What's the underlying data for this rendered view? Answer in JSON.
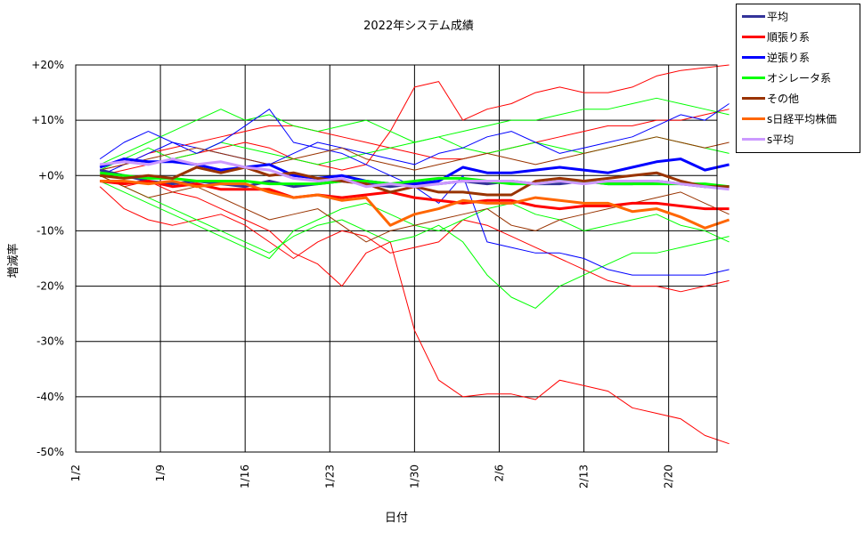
{
  "chart_data": {
    "type": "line",
    "title": "2022年システム成績",
    "xlabel": "日付",
    "ylabel": "増減率",
    "xlim": [
      0,
      53
    ],
    "x_ticks": [
      {
        "label": "1/2",
        "x": 0
      },
      {
        "label": "1/9",
        "x": 7
      },
      {
        "label": "1/16",
        "x": 14
      },
      {
        "label": "1/23",
        "x": 21
      },
      {
        "label": "1/30",
        "x": 28
      },
      {
        "label": "2/6",
        "x": 35
      },
      {
        "label": "2/13",
        "x": 42
      },
      {
        "label": "2/20",
        "x": 49
      }
    ],
    "ylim": [
      -50,
      20
    ],
    "y_ticks": [
      {
        "label": "+20%",
        "y": 20
      },
      {
        "label": "+10%",
        "y": 10
      },
      {
        "label": "+0%",
        "y": 0
      },
      {
        "label": "-10%",
        "y": -10
      },
      {
        "label": "-20%",
        "y": -20
      },
      {
        "label": "-30%",
        "y": -30
      },
      {
        "label": "-40%",
        "y": -40
      },
      {
        "label": "-50%",
        "y": -50
      }
    ],
    "grid": true,
    "legend_position": "outside-top-right",
    "series": [
      {
        "name": "平均",
        "color": "#333399",
        "width": 3,
        "x": [
          2,
          4,
          6,
          8,
          10,
          12,
          14,
          16,
          18,
          20,
          22,
          24,
          26,
          28,
          30,
          32,
          34,
          36,
          38,
          40,
          42,
          44,
          46,
          48,
          50,
          52,
          54
        ],
        "y": [
          1,
          0,
          -1,
          -1.5,
          -1,
          -1.5,
          -2,
          -1,
          -2,
          -1.5,
          -1,
          -1.5,
          -2,
          -1.5,
          -1.5,
          -1,
          -1.5,
          -1,
          -1.5,
          -1.5,
          -1,
          -1.5,
          -1.5,
          -1,
          -1.5,
          -2,
          -2
        ]
      },
      {
        "name": "順張り系",
        "color": "#ff0000",
        "width": 3,
        "x": [
          2,
          4,
          6,
          8,
          10,
          12,
          14,
          16,
          18,
          20,
          22,
          24,
          26,
          28,
          30,
          32,
          34,
          36,
          38,
          40,
          42,
          44,
          46,
          48,
          50,
          52,
          54
        ],
        "y": [
          -1,
          -1.5,
          -1,
          -2,
          -1.5,
          -2.5,
          -2.5,
          -2.5,
          -4,
          -3.5,
          -4,
          -3.5,
          -3,
          -4,
          -4.5,
          -5,
          -4.5,
          -4.5,
          -5.5,
          -6,
          -5.5,
          -5.5,
          -5,
          -5,
          -5.5,
          -6,
          -6
        ]
      },
      {
        "name": "逆張り系",
        "color": "#0000ff",
        "width": 3,
        "x": [
          2,
          4,
          6,
          8,
          10,
          12,
          14,
          16,
          18,
          20,
          22,
          24,
          26,
          28,
          30,
          32,
          34,
          36,
          38,
          40,
          42,
          44,
          46,
          48,
          50,
          52,
          54
        ],
        "y": [
          1.5,
          3,
          2.5,
          2.5,
          2,
          1,
          1.5,
          2,
          0,
          -0.5,
          0,
          -1,
          -1.5,
          -1.5,
          -1,
          1.5,
          0.5,
          0.5,
          1,
          1.5,
          1,
          0.5,
          1.5,
          2.5,
          3,
          1,
          2
        ]
      },
      {
        "name": "オシレータ系",
        "color": "#00ff00",
        "width": 3,
        "x": [
          2,
          4,
          6,
          8,
          10,
          12,
          14,
          16,
          18,
          20,
          22,
          24,
          26,
          28,
          30,
          32,
          34,
          36,
          38,
          40,
          42,
          44,
          46,
          48,
          50,
          52,
          54
        ],
        "y": [
          0.5,
          0,
          -0.5,
          -0.5,
          -1,
          -1,
          -1,
          -1.5,
          -1.5,
          -1.5,
          -1,
          -1,
          -1.5,
          -1,
          -0.5,
          -0.5,
          -1,
          -1.5,
          -1.5,
          -1,
          -1,
          -1.5,
          -1.5,
          -1.5,
          -1.5,
          -1.5,
          -2
        ]
      },
      {
        "name": "その他",
        "color": "#993300",
        "width": 3,
        "x": [
          2,
          4,
          6,
          8,
          10,
          12,
          14,
          16,
          18,
          20,
          22,
          24,
          26,
          28,
          30,
          32,
          34,
          36,
          38,
          40,
          42,
          44,
          46,
          48,
          50,
          52,
          54
        ],
        "y": [
          0,
          -0.5,
          0,
          -0.5,
          1.5,
          0.5,
          1.5,
          0,
          0.5,
          -0.5,
          -1,
          -1.5,
          -3,
          -2,
          -3,
          -3,
          -3.5,
          -3.5,
          -1,
          -0.5,
          -1,
          -0.5,
          0,
          0.5,
          -1,
          -2,
          -2
        ]
      },
      {
        "name": "s日経平均株価",
        "color": "#ff6600",
        "width": 3,
        "x": [
          2,
          4,
          6,
          8,
          10,
          12,
          14,
          16,
          18,
          20,
          22,
          24,
          26,
          28,
          30,
          32,
          34,
          36,
          38,
          40,
          42,
          44,
          46,
          48,
          50,
          52,
          54
        ],
        "y": [
          -1,
          -1,
          -1.5,
          -1,
          -2,
          -1.5,
          -1.5,
          -3,
          -4,
          -3.5,
          -4.5,
          -4,
          -9,
          -7,
          -6,
          -4.5,
          -5,
          -5,
          -4,
          -4.5,
          -5,
          -5,
          -6.5,
          -6,
          -7.5,
          -9.5,
          -8
        ]
      },
      {
        "name": "s平均",
        "color": "#cc99ff",
        "width": 3,
        "x": [
          2,
          4,
          6,
          8,
          10,
          12,
          14,
          16,
          18,
          20,
          22,
          24,
          26,
          28,
          30,
          32,
          34,
          36,
          38,
          40,
          42,
          44,
          46,
          48,
          50,
          52,
          54
        ],
        "y": [
          2,
          2.5,
          2,
          3,
          2,
          2.5,
          1.5,
          1,
          -0.5,
          -1,
          -0.5,
          -2,
          -1.5,
          -2,
          -1.5,
          -1,
          -1,
          -1,
          -1.5,
          -1,
          -1.5,
          -1,
          -1,
          -1,
          -1.5,
          -2,
          -2.5
        ]
      },
      {
        "color": "#ff0000",
        "width": 1,
        "x": [
          2,
          4,
          6,
          8,
          10,
          12,
          14,
          16,
          18,
          20,
          22,
          24,
          26,
          28,
          30,
          32,
          34,
          36,
          38,
          40,
          42,
          44,
          46,
          48,
          50,
          52,
          54
        ],
        "y": [
          0,
          -2,
          -1,
          -3,
          -4,
          -6,
          -8,
          -10,
          -14,
          -16,
          -20,
          -14,
          -12,
          -28,
          -37,
          -40,
          -39.5,
          -39.5,
          -40.5,
          -37,
          -38,
          -39,
          -42,
          -43,
          -44,
          -47,
          -48.5
        ]
      },
      {
        "color": "#ff0000",
        "width": 1,
        "x": [
          2,
          4,
          6,
          8,
          10,
          12,
          14,
          16,
          18,
          20,
          22,
          24,
          26,
          28,
          30,
          32,
          34,
          36,
          38,
          40,
          42,
          44,
          46,
          48,
          50,
          52,
          54
        ],
        "y": [
          0,
          1,
          2,
          3,
          4,
          5,
          6,
          5,
          3,
          2,
          1,
          2,
          8,
          16,
          17,
          10,
          12,
          13,
          15,
          16,
          15,
          15,
          16,
          18,
          19,
          19.5,
          20
        ]
      },
      {
        "color": "#ff0000",
        "width": 1,
        "x": [
          2,
          4,
          6,
          8,
          10,
          12,
          14,
          16,
          18,
          20,
          22,
          24,
          26,
          28,
          30,
          32,
          34,
          36,
          38,
          40,
          42,
          44,
          46,
          48,
          50,
          52,
          54
        ],
        "y": [
          -2,
          -6,
          -8,
          -9,
          -8,
          -7,
          -9,
          -12,
          -15,
          -12,
          -10,
          -11,
          -14,
          -13,
          -12,
          -8,
          -9,
          -11,
          -13,
          -15,
          -17,
          -19,
          -20,
          -20,
          -21,
          -20,
          -19
        ]
      },
      {
        "color": "#ff0000",
        "width": 1,
        "x": [
          2,
          4,
          6,
          8,
          10,
          12,
          14,
          16,
          18,
          20,
          22,
          24,
          26,
          28,
          30,
          32,
          34,
          36,
          38,
          40,
          42,
          44,
          46,
          48,
          50,
          52,
          54
        ],
        "y": [
          1,
          2,
          4,
          5,
          6,
          7,
          8,
          9,
          9,
          8,
          7,
          6,
          5,
          4,
          3,
          3,
          4,
          5,
          6,
          7,
          8,
          9,
          9,
          10,
          10,
          11,
          12
        ]
      },
      {
        "color": "#00ff00",
        "width": 1,
        "x": [
          2,
          4,
          6,
          8,
          10,
          12,
          14,
          16,
          18,
          20,
          22,
          24,
          26,
          28,
          30,
          32,
          34,
          36,
          38,
          40,
          42,
          44,
          46,
          48,
          50,
          52,
          54
        ],
        "y": [
          0,
          -2,
          -4,
          -6,
          -8,
          -10,
          -12,
          -14,
          -11,
          -9,
          -8,
          -10,
          -12,
          -11,
          -9,
          -12,
          -18,
          -22,
          -24,
          -20,
          -18,
          -16,
          -14,
          -14,
          -13,
          -12,
          -11
        ]
      },
      {
        "color": "#00ff00",
        "width": 1,
        "x": [
          2,
          4,
          6,
          8,
          10,
          12,
          14,
          16,
          18,
          20,
          22,
          24,
          26,
          28,
          30,
          32,
          34,
          36,
          38,
          40,
          42,
          44,
          46,
          48,
          50,
          52,
          54
        ],
        "y": [
          2,
          4,
          6,
          8,
          10,
          12,
          10,
          11,
          9,
          8,
          9,
          10,
          8,
          6,
          7,
          8,
          9,
          10,
          10,
          11,
          12,
          12,
          13,
          14,
          13,
          12,
          11
        ]
      },
      {
        "color": "#00ff00",
        "width": 1,
        "x": [
          2,
          4,
          6,
          8,
          10,
          12,
          14,
          16,
          18,
          20,
          22,
          24,
          26,
          28,
          30,
          32,
          34,
          36,
          38,
          40,
          42,
          44,
          46,
          48,
          50,
          52,
          54
        ],
        "y": [
          -1,
          -3,
          -5,
          -7,
          -9,
          -11,
          -13,
          -15,
          -10,
          -8,
          -6,
          -5,
          -7,
          -9,
          -10,
          -8,
          -6,
          -5,
          -7,
          -8,
          -10,
          -9,
          -8,
          -7,
          -9,
          -10,
          -12
        ]
      },
      {
        "color": "#00ff00",
        "width": 1,
        "x": [
          2,
          4,
          6,
          8,
          10,
          12,
          14,
          16,
          18,
          20,
          22,
          24,
          26,
          28,
          30,
          32,
          34,
          36,
          38,
          40,
          42,
          44,
          46,
          48,
          50,
          52,
          54
        ],
        "y": [
          1,
          3,
          5,
          3,
          4,
          6,
          5,
          4,
          3,
          2,
          3,
          4,
          5,
          6,
          7,
          5,
          4,
          5,
          6,
          5,
          4,
          5,
          6,
          7,
          6,
          5,
          4
        ]
      },
      {
        "color": "#0000ff",
        "width": 1,
        "x": [
          2,
          4,
          6,
          8,
          10,
          12,
          14,
          16,
          18,
          20,
          22,
          24,
          26,
          28,
          30,
          32,
          34,
          36,
          38,
          40,
          42,
          44,
          46,
          48,
          50,
          52,
          54
        ],
        "y": [
          3,
          6,
          8,
          6,
          4,
          6,
          9,
          12,
          6,
          5,
          4,
          2,
          0,
          -2,
          -5,
          0,
          -12,
          -13,
          -14,
          -14,
          -15,
          -17,
          -18,
          -18,
          -18,
          -18,
          -17
        ]
      },
      {
        "color": "#0000ff",
        "width": 1,
        "x": [
          2,
          4,
          6,
          8,
          10,
          12,
          14,
          16,
          18,
          20,
          22,
          24,
          26,
          28,
          30,
          32,
          34,
          36,
          38,
          40,
          42,
          44,
          46,
          48,
          50,
          52,
          54
        ],
        "y": [
          0,
          2,
          4,
          6,
          5,
          4,
          3,
          2,
          4,
          6,
          5,
          4,
          3,
          2,
          4,
          5,
          7,
          8,
          6,
          4,
          5,
          6,
          7,
          9,
          11,
          10,
          13
        ]
      },
      {
        "color": "#993300",
        "width": 1,
        "x": [
          2,
          4,
          6,
          8,
          10,
          12,
          14,
          16,
          18,
          20,
          22,
          24,
          26,
          28,
          30,
          32,
          34,
          36,
          38,
          40,
          42,
          44,
          46,
          48,
          50,
          52,
          54
        ],
        "y": [
          0,
          -2,
          -4,
          -3,
          -2,
          -4,
          -6,
          -8,
          -7,
          -6,
          -9,
          -12,
          -10,
          -9,
          -8,
          -7,
          -6,
          -9,
          -10,
          -8,
          -7,
          -6,
          -5,
          -4,
          -3,
          -5,
          -7
        ]
      },
      {
        "color": "#993300",
        "width": 1,
        "x": [
          2,
          4,
          6,
          8,
          10,
          12,
          14,
          16,
          18,
          20,
          22,
          24,
          26,
          28,
          30,
          32,
          34,
          36,
          38,
          40,
          42,
          44,
          46,
          48,
          50,
          52,
          54
        ],
        "y": [
          1,
          2,
          3,
          4,
          5,
          4,
          3,
          2,
          3,
          4,
          5,
          3,
          2,
          1,
          2,
          3,
          4,
          3,
          2,
          3,
          4,
          5,
          6,
          7,
          6,
          5,
          6
        ]
      }
    ]
  }
}
